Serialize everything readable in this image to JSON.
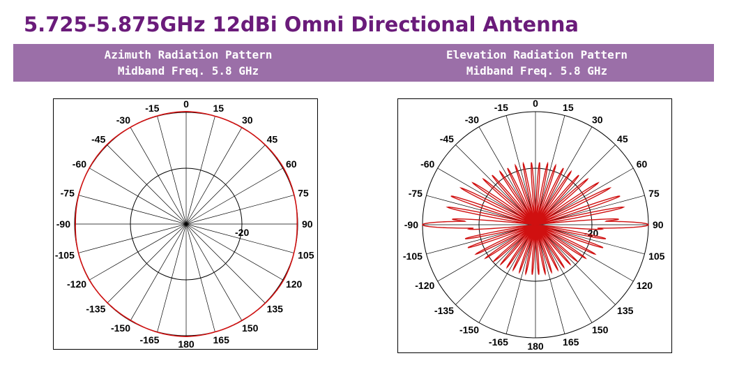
{
  "title": "5.725-5.875GHz 12dBi Omni Directional Antenna",
  "banner": {
    "left": {
      "line1": "Azimuth Radiation Pattern",
      "line2": "Midband Freq. 5.8 GHz"
    },
    "right": {
      "line1": "Elevation Radiation Pattern",
      "line2": "Midband Freq. 5.8 GHz"
    }
  },
  "colors": {
    "title": "#6a1b7a",
    "banner": "#9b6fa8",
    "trace": "#d01010",
    "grid": "#000000"
  },
  "chart_data": [
    {
      "type": "polar",
      "name": "azimuth",
      "angle_labels": [
        "0",
        "15",
        "30",
        "45",
        "60",
        "75",
        "90",
        "105",
        "120",
        "135",
        "150",
        "165",
        "180",
        "-165",
        "-150",
        "-135",
        "-120",
        "-105",
        "-90",
        "-75",
        "-60",
        "-45",
        "-30",
        "-15"
      ],
      "angle_values": [
        0,
        15,
        30,
        45,
        60,
        75,
        90,
        105,
        120,
        135,
        150,
        165,
        180,
        -165,
        -150,
        -135,
        -120,
        -105,
        -90,
        -75,
        -60,
        -45,
        -30,
        -15
      ],
      "radial_label": "-20",
      "radial_range_db": [
        -40,
        0
      ],
      "radial_rings_db": [
        -20
      ],
      "pattern_db": [
        0,
        -0.3,
        -0.4,
        -0.2,
        0,
        -0.2,
        -0.5,
        -0.3,
        0,
        -0.2,
        -0.4,
        -0.3,
        0,
        -0.2,
        -0.5,
        -0.4,
        -0.2,
        -0.3,
        -0.6,
        -0.4,
        -0.2,
        -0.1,
        -0.3,
        -0.2,
        0
      ]
    },
    {
      "type": "polar",
      "name": "elevation",
      "angle_labels": [
        "0",
        "15",
        "30",
        "45",
        "60",
        "75",
        "90",
        "105",
        "120",
        "135",
        "150",
        "165",
        "180",
        "-165",
        "-150",
        "-135",
        "-120",
        "-105",
        "-90",
        "-75",
        "-60",
        "-45",
        "-30",
        "-15"
      ],
      "angle_values": [
        0,
        15,
        30,
        45,
        60,
        75,
        90,
        105,
        120,
        135,
        150,
        165,
        180,
        -165,
        -150,
        -135,
        -120,
        -105,
        -90,
        -75,
        -60,
        -45,
        -30,
        -15
      ],
      "radial_label": "-20",
      "radial_range_db": [
        -40,
        0
      ],
      "radial_rings_db": [
        -20
      ],
      "main_lobe_db": 0,
      "main_lobe_angles": [
        90,
        -90
      ]
    }
  ]
}
